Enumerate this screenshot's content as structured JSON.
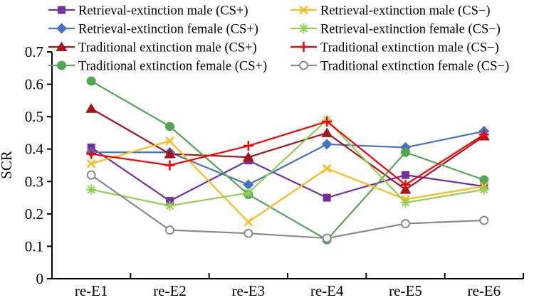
{
  "chart_data": {
    "type": "line",
    "title": "",
    "xlabel": "",
    "ylabel": "SCR",
    "ylim": [
      0,
      0.7
    ],
    "ytick_labels": [
      "0",
      "0.1",
      "0.2",
      "0.3",
      "0.4",
      "0.5",
      "0.6",
      "0.7"
    ],
    "ytick_values": [
      0,
      0.1,
      0.2,
      0.3,
      0.4,
      0.5,
      0.6,
      0.7
    ],
    "categories": [
      "re-E1",
      "re-E2",
      "re-E3",
      "re-E4",
      "re-E5",
      "re-E6"
    ],
    "grid": false,
    "legend_position": "top-two-columns",
    "series": [
      {
        "name": "Retrieval-extinction male (CS+)",
        "marker": "square",
        "color": "#7030A0",
        "values": [
          0.405,
          0.24,
          0.365,
          0.25,
          0.32,
          0.285
        ]
      },
      {
        "name": "Retrieval-extinction female (CS+)",
        "marker": "diamond",
        "color": "#4472C4",
        "values": [
          0.39,
          0.39,
          0.29,
          0.415,
          0.405,
          0.455
        ]
      },
      {
        "name": "Traditional extinction male (CS+)",
        "marker": "triangle",
        "color": "#A8121A",
        "values": [
          0.525,
          0.385,
          0.375,
          0.45,
          0.275,
          0.44
        ]
      },
      {
        "name": "Traditional extinction female (CS+)",
        "marker": "circle",
        "color": "#54A654",
        "values": [
          0.61,
          0.47,
          0.26,
          0.12,
          0.39,
          0.305
        ]
      },
      {
        "name": "Retrieval-extinction male (CS−)",
        "marker": "x",
        "color": "#FFB919",
        "values": [
          0.355,
          0.425,
          0.175,
          0.34,
          0.245,
          0.285
        ]
      },
      {
        "name": "Retrieval-extinction female (CS−)",
        "marker": "asterisk",
        "color": "#92D050",
        "values": [
          0.275,
          0.225,
          0.265,
          0.49,
          0.235,
          0.275
        ]
      },
      {
        "name": "Traditional extinction male (CS−)",
        "marker": "plus",
        "color": "#FF0000",
        "values": [
          0.385,
          0.35,
          0.41,
          0.485,
          0.29,
          0.445
        ]
      },
      {
        "name": "Traditional extinction female (CS−)",
        "marker": "circle-open",
        "color": "#8A8A8A",
        "values": [
          0.32,
          0.15,
          0.14,
          0.125,
          0.17,
          0.18
        ]
      }
    ]
  }
}
